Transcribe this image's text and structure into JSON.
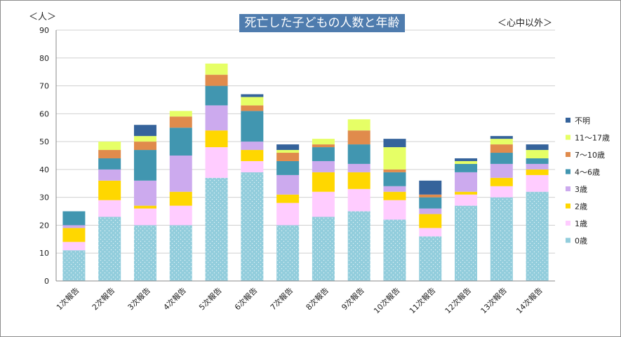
{
  "chart_data": {
    "type": "bar",
    "stacked": true,
    "title": "死亡した子どもの人数と年齢",
    "unit_label": "＜人＞",
    "note": "＜心中以外＞",
    "ylim": [
      0,
      90
    ],
    "yticks": [
      0,
      10,
      20,
      30,
      40,
      50,
      60,
      70,
      80,
      90
    ],
    "grid": true,
    "legend_position": "right",
    "categories": [
      "1次報告",
      "2次報告",
      "3次報告",
      "4次報告",
      "5次報告",
      "6次報告",
      "7次報告",
      "8次報告",
      "9次報告",
      "10次報告",
      "11次報告",
      "12次報告",
      "13次報告",
      "14次報告"
    ],
    "series": [
      {
        "name": "0歳",
        "color": "#92cddc",
        "values": [
          11,
          23,
          20,
          20,
          37,
          39,
          20,
          23,
          25,
          22,
          16,
          27,
          30,
          32
        ]
      },
      {
        "name": "1歳",
        "color": "#ffccff",
        "values": [
          3,
          6,
          6,
          7,
          11,
          4,
          8,
          9,
          8,
          7,
          3,
          4,
          4,
          6
        ]
      },
      {
        "name": "2歳",
        "color": "#ffd700",
        "values": [
          5,
          7,
          1,
          5,
          6,
          4,
          3,
          7,
          6,
          3,
          5,
          1,
          3,
          2
        ]
      },
      {
        "name": "3歳",
        "color": "#ccaaee",
        "values": [
          1,
          4,
          9,
          13,
          9,
          3,
          7,
          4,
          3,
          2,
          2,
          7,
          5,
          2
        ]
      },
      {
        "name": "4～6歳",
        "color": "#4196b0",
        "values": [
          5,
          4,
          11,
          10,
          7,
          11,
          5,
          5,
          7,
          5,
          4,
          3,
          4,
          2
        ]
      },
      {
        "name": "7～10歳",
        "color": "#e08b4c",
        "values": [
          0,
          3,
          3,
          4,
          4,
          2,
          3,
          1,
          5,
          1,
          1,
          0,
          3,
          0
        ]
      },
      {
        "name": "11～17歳",
        "color": "#e6ff66",
        "values": [
          0,
          3,
          2,
          2,
          4,
          3,
          1,
          2,
          4,
          8,
          0,
          1,
          2,
          3
        ]
      },
      {
        "name": "不明",
        "color": "#35639b",
        "values": [
          0,
          0,
          4,
          0,
          0,
          1,
          2,
          0,
          0,
          3,
          5,
          1,
          1,
          2
        ]
      }
    ]
  }
}
